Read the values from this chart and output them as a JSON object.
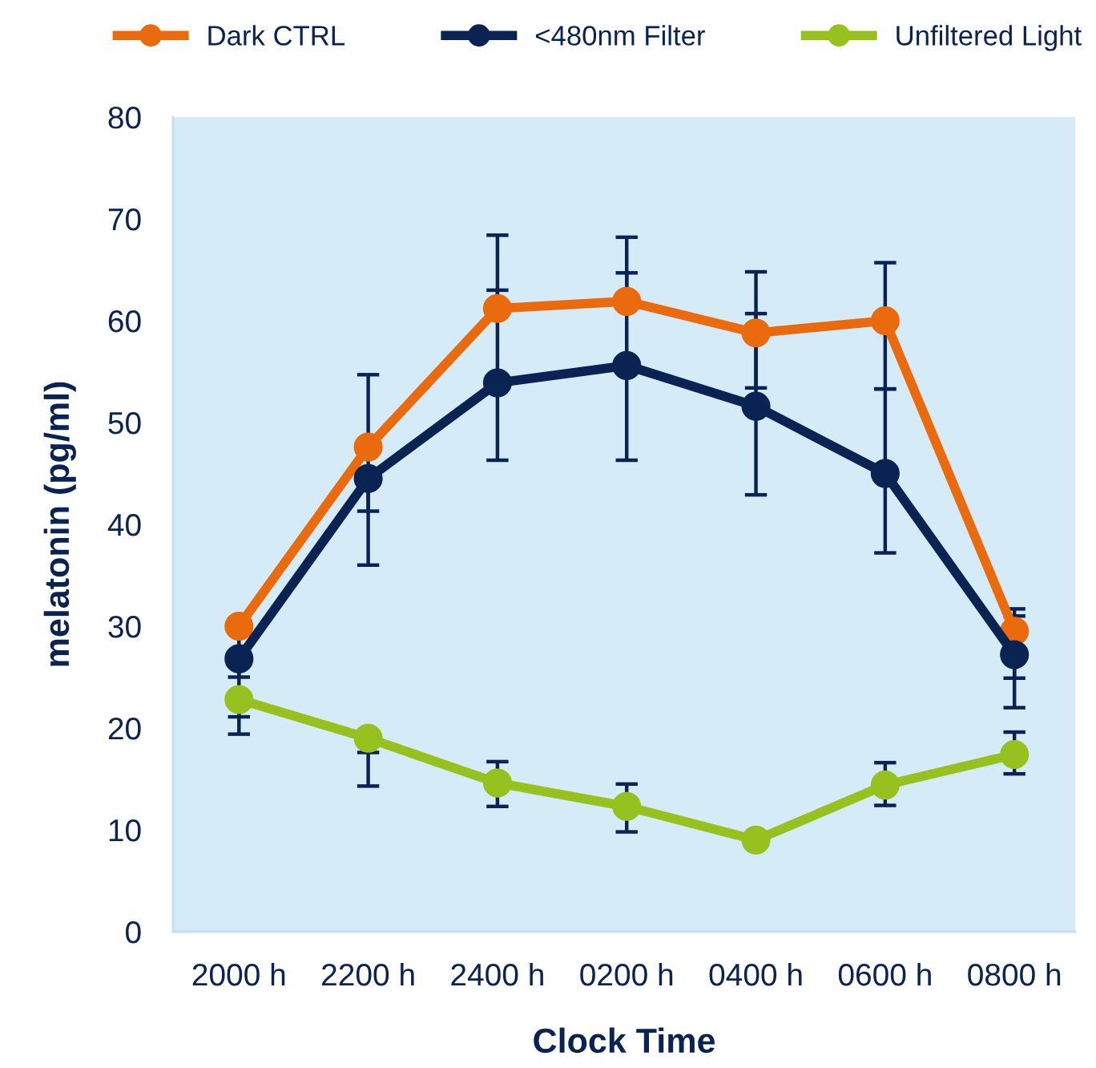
{
  "chart_data": {
    "type": "line",
    "xlabel": "Clock Time",
    "ylabel": "melatonin (pg/ml)",
    "categories": [
      "2000 h",
      "2200 h",
      "2400 h",
      "0200 h",
      "0400 h",
      "0600 h",
      "0800 h"
    ],
    "ylim": [
      0,
      80
    ],
    "yticks": [
      0,
      10,
      20,
      30,
      40,
      50,
      60,
      70,
      80
    ],
    "legend": "top",
    "marker": "circle",
    "line_style": "solid",
    "series": [
      {
        "name": "Dark CTRL",
        "color": "#ea6a0e",
        "values": [
          30.0,
          47.6,
          61.2,
          61.9,
          58.8,
          60.0,
          29.5
        ],
        "errors": [
          [
            21.1,
            30.0
          ],
          [
            41.3,
            54.7
          ],
          [
            61.2,
            68.4
          ],
          [
            61.9,
            68.2
          ],
          [
            53.4,
            64.8
          ],
          [
            53.3,
            65.7
          ],
          [
            24.9,
            31.7
          ]
        ]
      },
      {
        "name": "<480nm Filter",
        "color": "#0b2352",
        "values": [
          26.8,
          44.5,
          53.9,
          55.6,
          51.6,
          45.0,
          27.2
        ],
        "errors": [
          [
            25.0,
            26.8
          ],
          [
            36.0,
            44.5
          ],
          [
            46.3,
            63.0
          ],
          [
            46.3,
            64.7
          ],
          [
            42.9,
            60.7
          ],
          [
            37.2,
            53.3
          ],
          [
            22.0,
            31.0
          ]
        ]
      },
      {
        "name": "Unfiltered Light",
        "color": "#97c11f",
        "values": [
          22.8,
          19.0,
          14.6,
          12.3,
          9.0,
          14.4,
          17.4
        ],
        "errors": [
          [
            19.4,
            22.8
          ],
          [
            14.3,
            17.6
          ],
          [
            12.3,
            16.7
          ],
          [
            9.8,
            14.5
          ],
          null,
          [
            12.4,
            16.6
          ],
          [
            15.5,
            19.6
          ]
        ]
      }
    ]
  }
}
